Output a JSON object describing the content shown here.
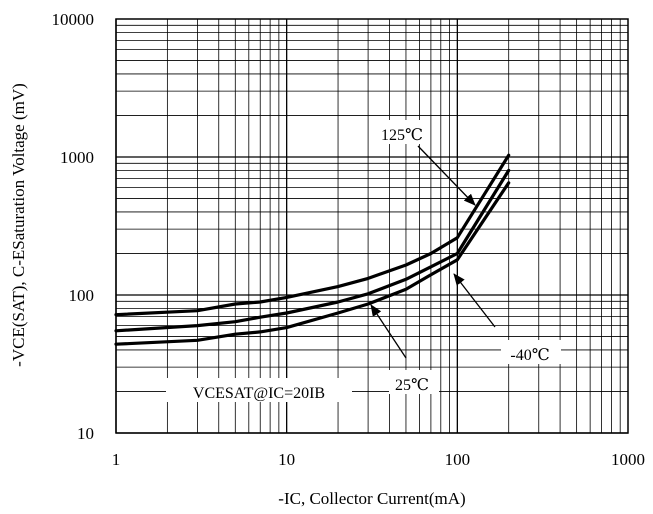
{
  "chart_data": {
    "type": "line",
    "title": "",
    "xlabel": "-IC, Collector Current(mA)",
    "ylabel": "-VCE(SAT), C-ESaturation Voltage (mV)",
    "xscale": "log",
    "yscale": "log",
    "xlim": [
      1,
      1000
    ],
    "ylim": [
      10,
      10000
    ],
    "grid": true,
    "x_ticks": [
      {
        "v": 1,
        "label": "1"
      },
      {
        "v": 10,
        "label": "10"
      },
      {
        "v": 100,
        "label": "100"
      },
      {
        "v": 1000,
        "label": "1000"
      }
    ],
    "y_ticks": [
      {
        "v": 10,
        "label": "10"
      },
      {
        "v": 100,
        "label": "100"
      },
      {
        "v": 1000,
        "label": "1000"
      },
      {
        "v": 10000,
        "label": "10000"
      }
    ],
    "series": [
      {
        "name": "125℃",
        "x": [
          1,
          3,
          5,
          7,
          10,
          20,
          30,
          50,
          70,
          100,
          200
        ],
        "y": [
          72,
          77,
          86,
          89,
          96,
          115,
          132,
          165,
          200,
          260,
          1030
        ]
      },
      {
        "name": "25℃",
        "x": [
          1,
          3,
          5,
          7,
          10,
          20,
          30,
          50,
          70,
          100,
          200
        ],
        "y": [
          55,
          60,
          64,
          69,
          74,
          89,
          102,
          130,
          160,
          200,
          800
        ]
      },
      {
        "name": "-40℃",
        "x": [
          1,
          3,
          5,
          7,
          10,
          20,
          30,
          50,
          70,
          100,
          200
        ],
        "y": [
          44,
          47,
          52,
          54,
          58,
          74,
          86,
          110,
          140,
          180,
          650
        ]
      }
    ],
    "annotations": [
      {
        "text": "125℃",
        "x": 0,
        "y": 0
      },
      {
        "text": "-40℃",
        "x": 0,
        "y": 0
      },
      {
        "text": "25℃",
        "x": 0,
        "y": 0
      },
      {
        "text": "VCESAT@IC=20IB",
        "x": 0,
        "y": 0
      }
    ]
  }
}
